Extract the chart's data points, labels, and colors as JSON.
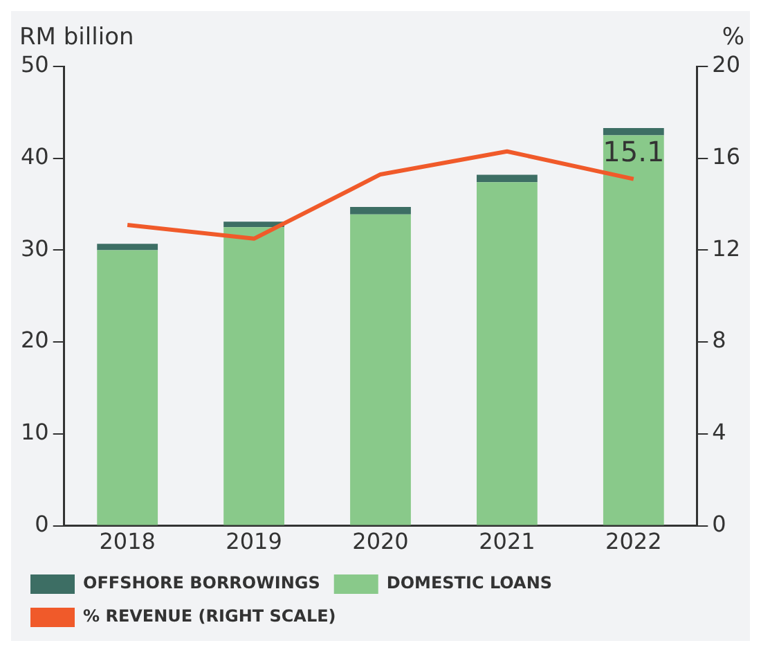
{
  "chart_data": {
    "type": "bar",
    "ylabel": "RM billion",
    "y2label": "%",
    "categories": [
      "2018",
      "2019",
      "2020",
      "2021",
      "2022"
    ],
    "stacked": true,
    "series": [
      {
        "name": "DOMESTIC LOANS",
        "color": "#89c98a",
        "values": [
          30.0,
          32.5,
          33.9,
          37.4,
          42.5
        ]
      },
      {
        "name": "OFFSHORE BORROWINGS",
        "color": "#3d6e64",
        "values": [
          0.7,
          0.6,
          0.8,
          0.8,
          0.8
        ]
      },
      {
        "name": "% REVENUE (RIGHT SCALE)",
        "type": "line",
        "axis": "y2",
        "color": "#f05a2a",
        "values": [
          13.1,
          12.5,
          15.3,
          16.3,
          15.1
        ],
        "value_labels": [
          null,
          null,
          null,
          null,
          "15.1"
        ]
      }
    ],
    "ylim": [
      0,
      50
    ],
    "yticks": [
      0,
      10,
      20,
      30,
      40,
      50
    ],
    "y2lim": [
      0,
      20
    ],
    "y2ticks": [
      0,
      4,
      8,
      12,
      16,
      20
    ],
    "grid": false,
    "legend": "bottom",
    "marker": "none"
  }
}
